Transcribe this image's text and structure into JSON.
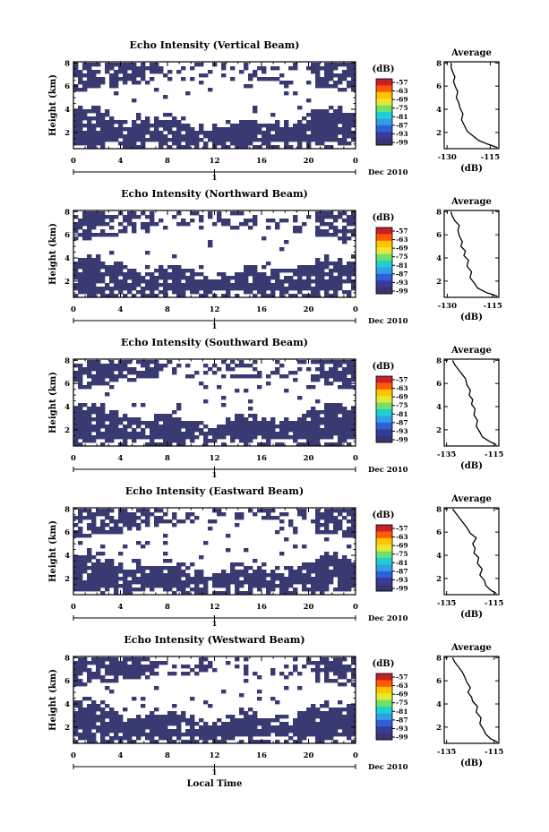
{
  "figure": {
    "xlabel": "Local Time",
    "date_label": "Dec 2010",
    "day_label": "1",
    "colors": {
      "echo": "#3a3a72",
      "background": "#ffffff",
      "line": "#000000"
    },
    "colorbar": {
      "unit": "(dB)",
      "ticks": [
        "-57",
        "-63",
        "-69",
        "-75",
        "-81",
        "-87",
        "-93",
        "-99"
      ],
      "colors": [
        "#c8202a",
        "#ff5a00",
        "#ffc400",
        "#e8e830",
        "#6ee070",
        "#20d0d0",
        "#2fa0e8",
        "#3060d8",
        "#3a3a98",
        "#363670"
      ]
    }
  },
  "chart_data": [
    {
      "type": "heatmap",
      "title": "Echo Intensity (Vertical Beam)",
      "xlabel": "Local Time",
      "ylabel": "Height (km)",
      "x_ticks": [
        "0",
        "4",
        "8",
        "12",
        "16",
        "20",
        "0"
      ],
      "xlim": [
        0,
        24
      ],
      "y_ticks": [
        "2",
        "4",
        "6",
        "8"
      ],
      "ylim": [
        0.6,
        8.1
      ],
      "profile": {
        "title": "Average",
        "xlabel": "(dB)",
        "x_ticks": [
          "-130",
          "-115"
        ],
        "xlim": [
          -131,
          -112
        ],
        "y_ticks": [
          "2",
          "4",
          "6",
          "8"
        ],
        "ylim": [
          0.6,
          8.1
        ],
        "x": [
          -112.5,
          -116,
          -119,
          -121,
          -123,
          -124,
          -125,
          -124.5,
          -125.5,
          -126,
          -126.8,
          -126.3,
          -127,
          -127.8,
          -127.3,
          -128,
          -128.6,
          -128.5,
          -128.8
        ],
        "y": [
          0.7,
          1.0,
          1.3,
          1.7,
          2.1,
          2.6,
          3.1,
          3.6,
          4.1,
          4.6,
          5.0,
          5.5,
          5.9,
          6.4,
          6.8,
          7.2,
          7.6,
          7.9,
          8.0
        ]
      }
    },
    {
      "type": "heatmap",
      "title": "Echo Intensity (Northward Beam)",
      "xlabel": "Local Time",
      "ylabel": "Height (km)",
      "x_ticks": [
        "0",
        "4",
        "8",
        "12",
        "16",
        "20",
        "0"
      ],
      "xlim": [
        0,
        24
      ],
      "y_ticks": [
        "2",
        "4",
        "6",
        "8"
      ],
      "ylim": [
        0.6,
        8.1
      ],
      "profile": {
        "title": "Average",
        "xlabel": "(dB)",
        "x_ticks": [
          "-130",
          "-115"
        ],
        "xlim": [
          -131,
          -113
        ],
        "y_ticks": [
          "2",
          "4",
          "6",
          "8"
        ],
        "ylim": [
          0.6,
          8.1
        ],
        "x": [
          -113.5,
          -117,
          -120,
          -121,
          -122.5,
          -122,
          -123.5,
          -123,
          -124.5,
          -124,
          -125.5,
          -125,
          -126,
          -126.5,
          -126,
          -127.5,
          -128.3,
          -128.8
        ],
        "y": [
          0.7,
          1.0,
          1.4,
          1.8,
          2.3,
          2.8,
          3.3,
          3.8,
          4.2,
          4.6,
          5.0,
          5.4,
          5.9,
          6.4,
          6.8,
          7.2,
          7.6,
          8.0
        ]
      }
    },
    {
      "type": "heatmap",
      "title": "Echo Intensity (Southward Beam)",
      "xlabel": "Local Time",
      "ylabel": "Height (km)",
      "x_ticks": [
        "0",
        "4",
        "8",
        "12",
        "16",
        "20",
        "0"
      ],
      "xlim": [
        0,
        24
      ],
      "y_ticks": [
        "2",
        "4",
        "6",
        "8"
      ],
      "ylim": [
        0.6,
        8.1
      ],
      "profile": {
        "title": "Average",
        "xlabel": "(dB)",
        "x_ticks": [
          "-135",
          "-115"
        ],
        "xlim": [
          -136,
          -113
        ],
        "y_ticks": [
          "2",
          "4",
          "6",
          "8"
        ],
        "ylim": [
          0.6,
          8.1
        ],
        "x": [
          -114,
          -117,
          -120,
          -121,
          -122.5,
          -122,
          -123.5,
          -123,
          -124.5,
          -124,
          -125.5,
          -125,
          -126.5,
          -127,
          -128.5,
          -130,
          -131.5,
          -132.5
        ],
        "y": [
          0.7,
          1.0,
          1.4,
          1.8,
          2.3,
          2.8,
          3.3,
          3.8,
          4.2,
          4.6,
          5.0,
          5.4,
          5.9,
          6.4,
          6.8,
          7.2,
          7.6,
          8.0
        ]
      }
    },
    {
      "type": "heatmap",
      "title": "Echo Intensity (Eastward Beam)",
      "xlabel": "Local Time",
      "ylabel": "Height (km)",
      "x_ticks": [
        "0",
        "4",
        "8",
        "12",
        "16",
        "20",
        "0"
      ],
      "xlim": [
        0,
        24
      ],
      "y_ticks": [
        "2",
        "4",
        "6",
        "8"
      ],
      "ylim": [
        0.6,
        8.1
      ],
      "profile": {
        "title": "Average",
        "xlabel": "(dB)",
        "x_ticks": [
          "-135",
          "-115"
        ],
        "xlim": [
          -136,
          -113
        ],
        "y_ticks": [
          "2",
          "4",
          "6",
          "8"
        ],
        "ylim": [
          0.6,
          8.1
        ],
        "x": [
          -114,
          -116.5,
          -118.5,
          -119,
          -121,
          -120,
          -122,
          -121.5,
          -123.5,
          -123,
          -124,
          -122.5,
          -125,
          -126.5,
          -128,
          -129.5,
          -131,
          -132.5
        ],
        "y": [
          0.7,
          1.0,
          1.4,
          1.8,
          2.3,
          2.8,
          3.3,
          3.8,
          4.2,
          4.6,
          5.0,
          5.5,
          5.9,
          6.4,
          6.8,
          7.2,
          7.6,
          8.0
        ]
      }
    },
    {
      "type": "heatmap",
      "title": "Echo Intensity (Westward Beam)",
      "xlabel": "Local Time",
      "ylabel": "Height (km)",
      "x_ticks": [
        "0",
        "4",
        "8",
        "12",
        "16",
        "20",
        "0"
      ],
      "xlim": [
        0,
        24
      ],
      "y_ticks": [
        "2",
        "4",
        "6",
        "8"
      ],
      "ylim": [
        0.6,
        8.1
      ],
      "profile": {
        "title": "Average",
        "xlabel": "(dB)",
        "x_ticks": [
          "-135",
          "-115"
        ],
        "xlim": [
          -136,
          -113
        ],
        "y_ticks": [
          "2",
          "4",
          "6",
          "8"
        ],
        "ylim": [
          0.6,
          8.1
        ],
        "x": [
          -113.5,
          -116.5,
          -118.5,
          -119.5,
          -121,
          -120.5,
          -122.5,
          -122,
          -124,
          -124.5,
          -126,
          -125,
          -126.5,
          -127.5,
          -128.5,
          -130,
          -131.5,
          -132.5
        ],
        "y": [
          0.7,
          1.0,
          1.4,
          1.8,
          2.3,
          2.8,
          3.3,
          3.8,
          4.2,
          4.6,
          5.0,
          5.4,
          5.9,
          6.4,
          6.8,
          7.2,
          7.6,
          8.0
        ]
      }
    }
  ]
}
